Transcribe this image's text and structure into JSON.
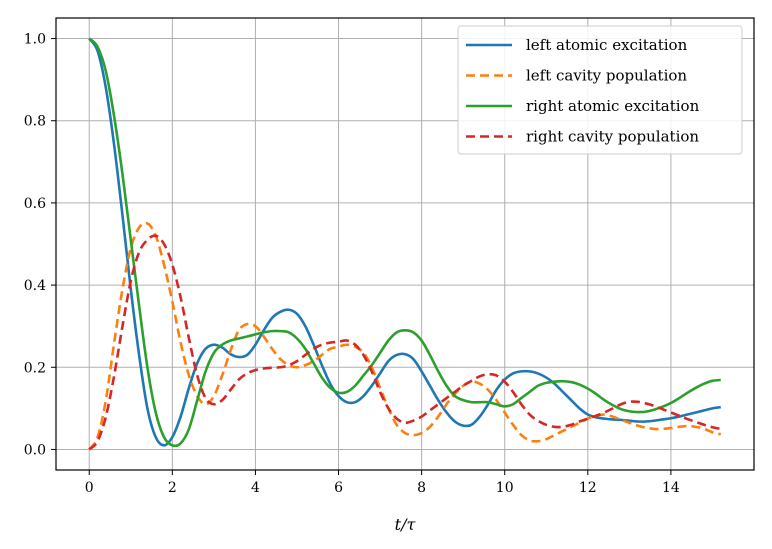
{
  "chart_data": {
    "type": "line",
    "title": "",
    "xlabel": "t/τ",
    "ylabel": "",
    "xlim": [
      -0.8,
      16.0
    ],
    "ylim": [
      -0.05,
      1.05
    ],
    "grid": true,
    "legend_position": "top-right",
    "x_ticks": [
      "0",
      "2",
      "4",
      "6",
      "8",
      "10",
      "12",
      "14"
    ],
    "y_ticks": [
      "0.0",
      "0.2",
      "0.4",
      "0.6",
      "0.8",
      "1.0"
    ],
    "x": [
      0.0,
      0.2,
      0.4,
      0.6,
      0.8,
      1.0,
      1.2,
      1.4,
      1.6,
      1.8,
      2.0,
      2.2,
      2.4,
      2.6,
      2.8,
      3.0,
      3.2,
      3.4,
      3.6,
      3.8,
      4.0,
      4.2,
      4.4,
      4.6,
      4.8,
      5.0,
      5.2,
      5.4,
      5.6,
      5.8,
      6.0,
      6.2,
      6.4,
      6.6,
      6.8,
      7.0,
      7.2,
      7.4,
      7.6,
      7.8,
      8.0,
      8.2,
      8.4,
      8.6,
      8.8,
      9.0,
      9.2,
      9.4,
      9.6,
      9.8,
      10.0,
      10.2,
      10.4,
      10.6,
      10.8,
      11.0,
      11.2,
      11.4,
      11.6,
      11.8,
      12.0,
      12.2,
      12.4,
      12.6,
      12.8,
      13.0,
      13.2,
      13.4,
      13.6,
      13.8,
      14.0,
      14.2,
      14.4,
      14.6,
      14.8,
      15.0,
      15.2
    ],
    "series": [
      {
        "name": "left atomic excitation",
        "color": "#1f77b4",
        "style": "solid",
        "values": [
          1.0,
          0.97,
          0.88,
          0.74,
          0.57,
          0.39,
          0.23,
          0.1,
          0.03,
          0.01,
          0.03,
          0.08,
          0.15,
          0.21,
          0.245,
          0.255,
          0.248,
          0.232,
          0.225,
          0.23,
          0.255,
          0.29,
          0.32,
          0.335,
          0.34,
          0.33,
          0.3,
          0.255,
          0.205,
          0.16,
          0.13,
          0.115,
          0.115,
          0.13,
          0.155,
          0.185,
          0.215,
          0.23,
          0.232,
          0.22,
          0.19,
          0.155,
          0.12,
          0.09,
          0.068,
          0.058,
          0.06,
          0.08,
          0.11,
          0.145,
          0.17,
          0.185,
          0.19,
          0.19,
          0.185,
          0.175,
          0.16,
          0.14,
          0.12,
          0.1,
          0.085,
          0.078,
          0.075,
          0.073,
          0.072,
          0.07,
          0.068,
          0.068,
          0.07,
          0.073,
          0.076,
          0.08,
          0.085,
          0.09,
          0.095,
          0.1,
          0.103
        ]
      },
      {
        "name": "left cavity population",
        "color": "#ff7f0e",
        "style": "dashed",
        "values": [
          0.0,
          0.03,
          0.12,
          0.26,
          0.39,
          0.49,
          0.54,
          0.55,
          0.52,
          0.45,
          0.36,
          0.26,
          0.18,
          0.13,
          0.11,
          0.13,
          0.18,
          0.24,
          0.29,
          0.305,
          0.3,
          0.275,
          0.245,
          0.22,
          0.205,
          0.2,
          0.205,
          0.215,
          0.23,
          0.245,
          0.25,
          0.255,
          0.25,
          0.235,
          0.2,
          0.15,
          0.1,
          0.06,
          0.04,
          0.035,
          0.04,
          0.055,
          0.08,
          0.11,
          0.135,
          0.155,
          0.165,
          0.16,
          0.145,
          0.12,
          0.09,
          0.06,
          0.035,
          0.022,
          0.02,
          0.025,
          0.035,
          0.045,
          0.055,
          0.065,
          0.075,
          0.082,
          0.085,
          0.08,
          0.072,
          0.065,
          0.058,
          0.053,
          0.05,
          0.05,
          0.052,
          0.055,
          0.057,
          0.055,
          0.05,
          0.042,
          0.037
        ]
      },
      {
        "name": "right atomic excitation",
        "color": "#2ca02c",
        "style": "solid",
        "values": [
          1.0,
          0.98,
          0.92,
          0.81,
          0.67,
          0.51,
          0.35,
          0.2,
          0.09,
          0.03,
          0.01,
          0.015,
          0.05,
          0.12,
          0.19,
          0.235,
          0.255,
          0.265,
          0.27,
          0.275,
          0.28,
          0.285,
          0.288,
          0.288,
          0.285,
          0.27,
          0.245,
          0.21,
          0.175,
          0.15,
          0.138,
          0.14,
          0.155,
          0.18,
          0.205,
          0.235,
          0.265,
          0.285,
          0.29,
          0.285,
          0.265,
          0.23,
          0.19,
          0.155,
          0.13,
          0.12,
          0.115,
          0.115,
          0.115,
          0.11,
          0.105,
          0.11,
          0.125,
          0.14,
          0.155,
          0.162,
          0.165,
          0.166,
          0.164,
          0.158,
          0.148,
          0.135,
          0.12,
          0.108,
          0.098,
          0.093,
          0.091,
          0.092,
          0.097,
          0.104,
          0.113,
          0.125,
          0.138,
          0.15,
          0.16,
          0.167,
          0.169
        ]
      },
      {
        "name": "right cavity population",
        "color": "#d62728",
        "style": "dashed",
        "values": [
          0.0,
          0.02,
          0.08,
          0.18,
          0.3,
          0.41,
          0.48,
          0.51,
          0.52,
          0.5,
          0.45,
          0.37,
          0.27,
          0.18,
          0.125,
          0.11,
          0.12,
          0.145,
          0.17,
          0.185,
          0.193,
          0.197,
          0.199,
          0.2,
          0.205,
          0.215,
          0.23,
          0.245,
          0.255,
          0.26,
          0.262,
          0.265,
          0.255,
          0.23,
          0.19,
          0.14,
          0.1,
          0.075,
          0.065,
          0.07,
          0.08,
          0.095,
          0.11,
          0.125,
          0.14,
          0.155,
          0.167,
          0.178,
          0.183,
          0.18,
          0.165,
          0.14,
          0.11,
          0.085,
          0.07,
          0.06,
          0.055,
          0.055,
          0.06,
          0.068,
          0.075,
          0.082,
          0.09,
          0.1,
          0.11,
          0.116,
          0.116,
          0.112,
          0.106,
          0.098,
          0.09,
          0.082,
          0.074,
          0.067,
          0.06,
          0.054,
          0.05
        ]
      }
    ]
  }
}
